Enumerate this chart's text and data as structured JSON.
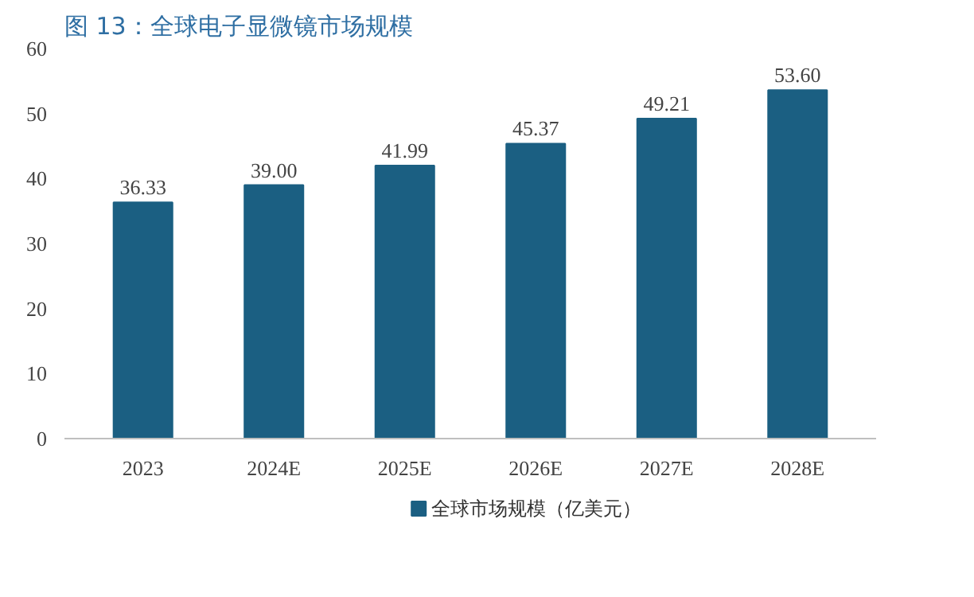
{
  "chart_data": {
    "type": "bar",
    "title": "图 13：全球电子显微镜市场规模",
    "categories": [
      "2023",
      "2024E",
      "2025E",
      "2026E",
      "2027E",
      "2028E"
    ],
    "series": [
      {
        "name": "全球市场规模（亿美元）",
        "color": "#1b5f82",
        "values": [
          36.33,
          39.0,
          41.99,
          45.37,
          49.21,
          53.6
        ],
        "value_labels": [
          "36.33",
          "39.00",
          "41.99",
          "45.37",
          "49.21",
          "53.60"
        ]
      }
    ],
    "ylim": [
      0,
      60
    ],
    "yticks": [
      0,
      10,
      20,
      30,
      40,
      50,
      60
    ],
    "grid": false,
    "legend": "bottom"
  }
}
